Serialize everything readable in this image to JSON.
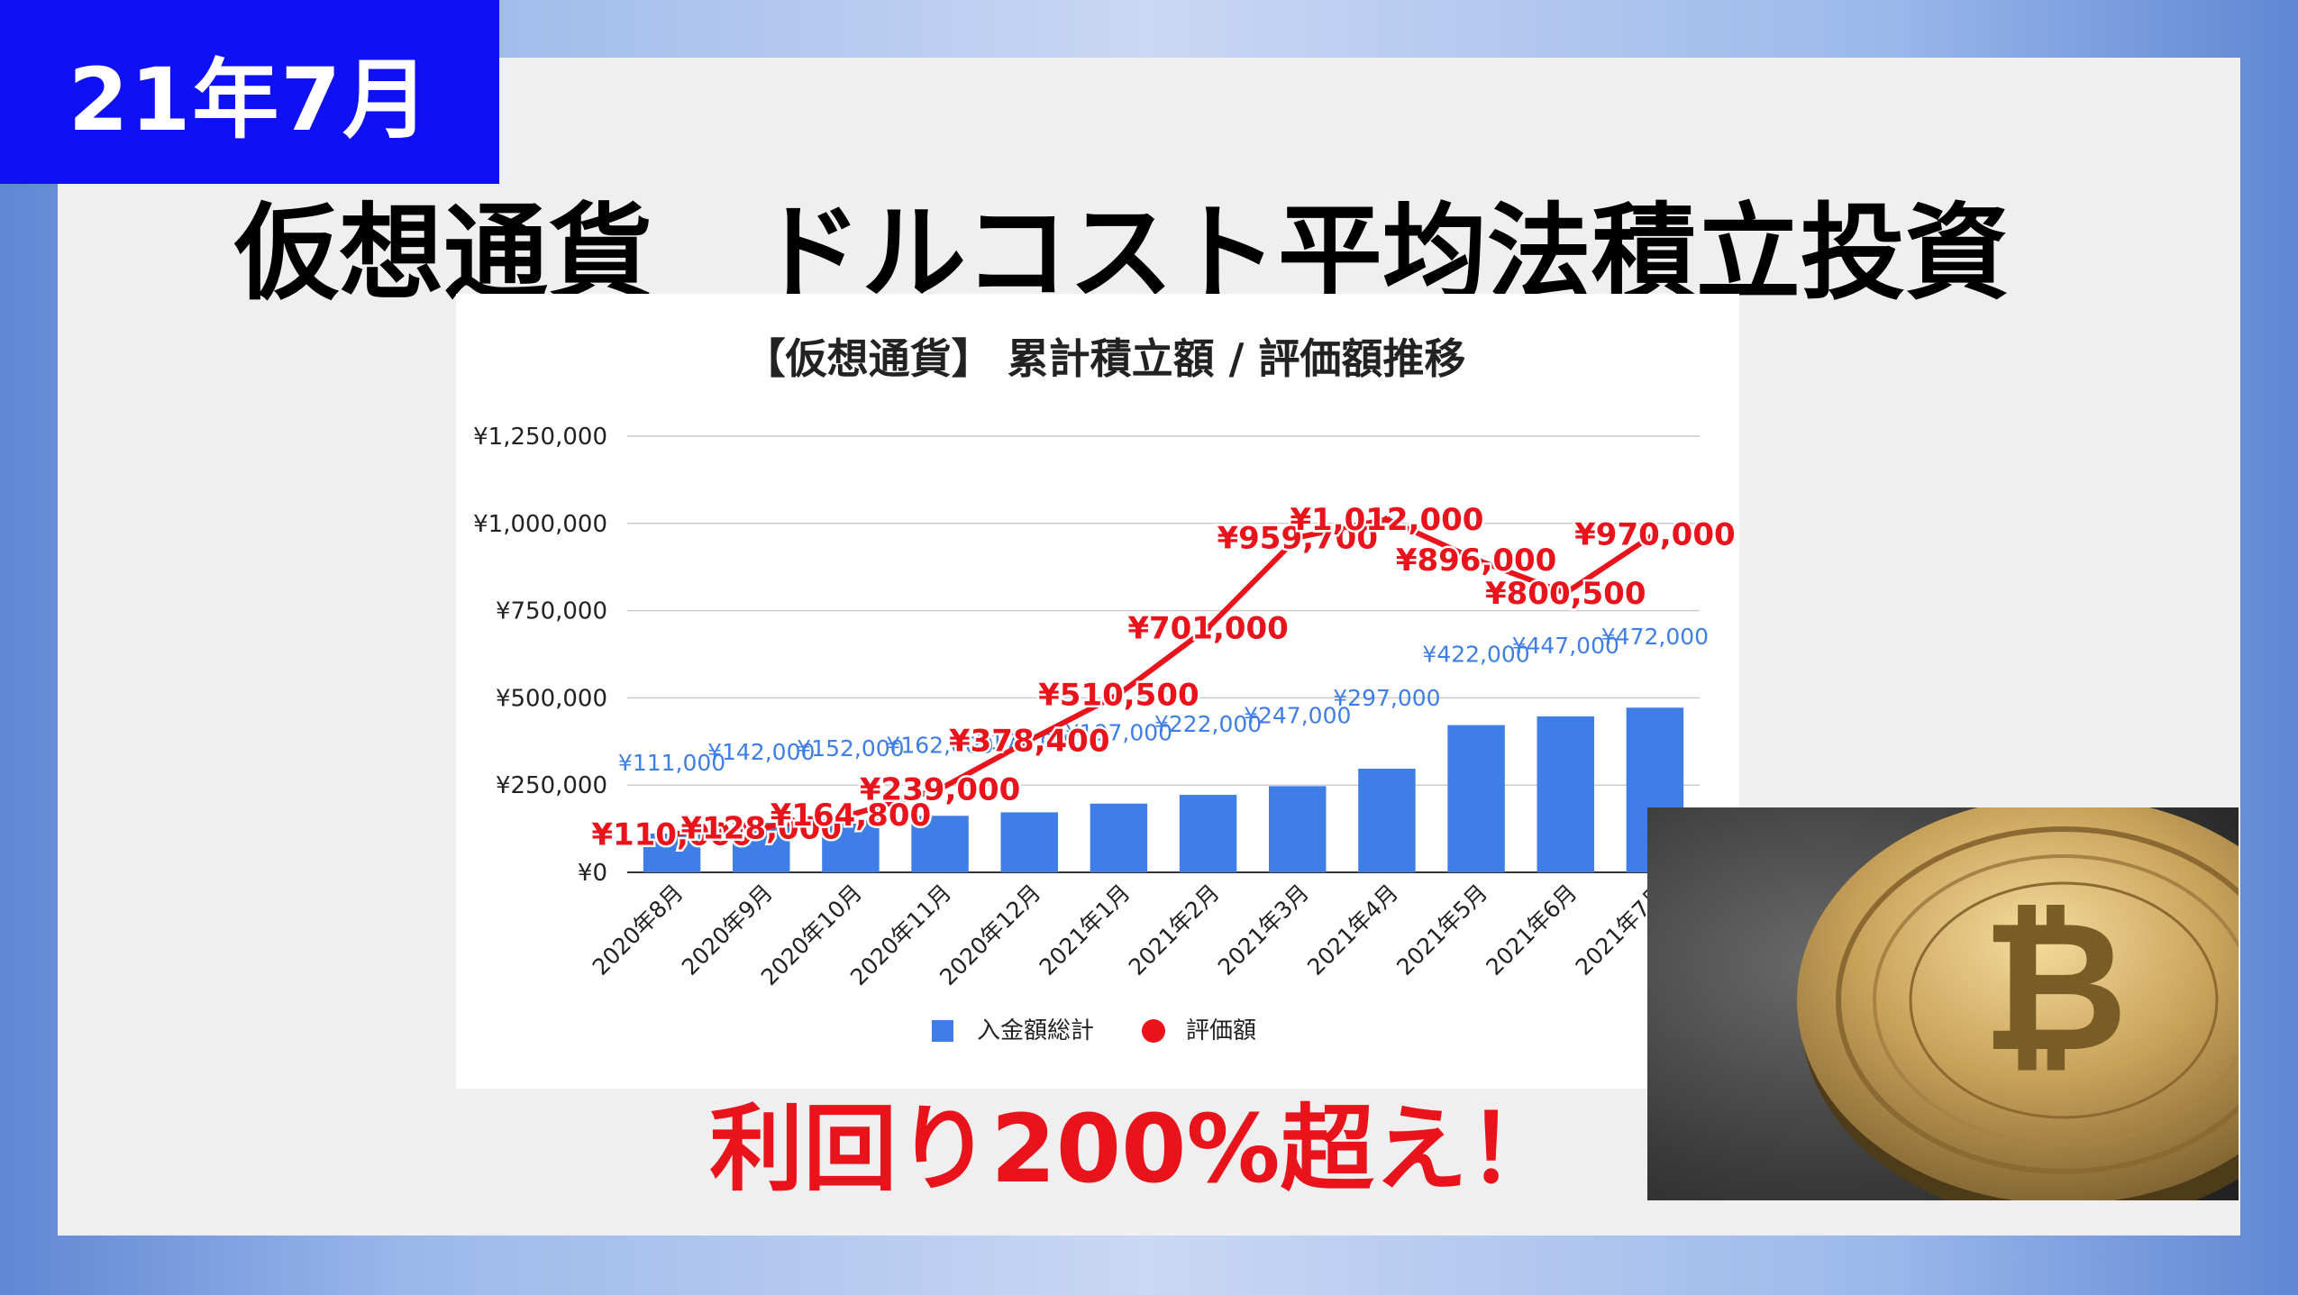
{
  "badge": "21年7月",
  "headline": "仮想通貨　ドルコスト平均法積立投資",
  "tagline": "利回り200%超え！",
  "colors": {
    "bar": "#3f7ee6",
    "line": "#e8131b",
    "badge": "#1010f4",
    "tagline": "#e8131b"
  },
  "photo": {
    "icon": "bitcoin-coin-icon"
  },
  "chart_data": {
    "type": "bar",
    "title": "【仮想通貨】 累計積立額 / 評価額推移",
    "categories": [
      "2020年8月",
      "2020年9月",
      "2020年10月",
      "2020年11月",
      "2020年12月",
      "2021年1月",
      "2021年2月",
      "2021年3月",
      "2021年4月",
      "2021年5月",
      "2021年6月",
      "2021年7月"
    ],
    "series": [
      {
        "name": "入金額総計",
        "type": "bar",
        "values": [
          111000,
          142000,
          152000,
          162000,
          172000,
          197000,
          222000,
          247000,
          297000,
          422000,
          447000,
          472000
        ],
        "labels": [
          "¥111,000",
          "¥142,000",
          "¥152,000",
          "¥162,000",
          "¥172,000",
          "¥197,000",
          "¥222,000",
          "¥247,000",
          "¥297,000",
          "¥422,000",
          "¥447,000",
          "¥472,000"
        ]
      },
      {
        "name": "評価額",
        "type": "line",
        "values": [
          110000,
          128000,
          164800,
          239000,
          378400,
          510500,
          701000,
          959700,
          1012000,
          896000,
          800500,
          970000
        ],
        "labels": [
          "¥110,000",
          "¥128,000",
          "¥164,800",
          "¥239,000",
          "¥378,400",
          "¥510,500",
          "¥701,000",
          "¥959,700",
          "¥1,012,000",
          "¥896,000",
          "¥800,500",
          "¥970,000"
        ]
      }
    ],
    "yticks": [
      "¥0",
      "¥250,000",
      "¥500,000",
      "¥750,000",
      "¥1,000,000",
      "¥1,250,000"
    ],
    "ylim": [
      0,
      1250000
    ],
    "grid": true,
    "legend": "bottom"
  }
}
